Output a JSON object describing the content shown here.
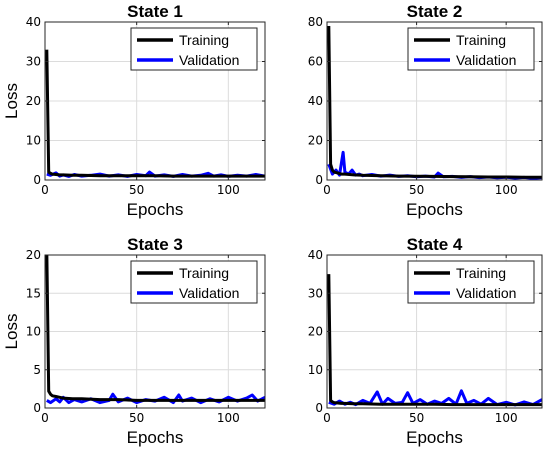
{
  "chart_data": [
    {
      "type": "line",
      "title": "State 1",
      "xlabel": "Epochs",
      "ylabel": "Loss",
      "xlim": [
        0,
        120
      ],
      "ylim": [
        0,
        40
      ],
      "xticks": [
        0,
        50,
        100
      ],
      "yticks": [
        0,
        10,
        20,
        30,
        40
      ],
      "grid": true,
      "legend_position": "top-right",
      "series": [
        {
          "name": "Training",
          "color": "#000000",
          "x": [
            1,
            2,
            3,
            4,
            6,
            8,
            10,
            15,
            20,
            30,
            40,
            50,
            60,
            70,
            80,
            90,
            100,
            110,
            120
          ],
          "y": [
            33,
            2.0,
            1.7,
            1.5,
            1.4,
            1.3,
            1.3,
            1.2,
            1.2,
            1.1,
            1.1,
            1.1,
            1.1,
            1.0,
            1.0,
            1.0,
            1.0,
            1.0,
            1.0
          ]
        },
        {
          "name": "Validation",
          "color": "#0000ff",
          "x": [
            1,
            3,
            6,
            8,
            10,
            13,
            16,
            20,
            25,
            30,
            35,
            40,
            45,
            50,
            55,
            57,
            60,
            65,
            70,
            75,
            80,
            85,
            89,
            92,
            96,
            100,
            105,
            110,
            115,
            120
          ],
          "y": [
            1.5,
            1.2,
            1.8,
            1.0,
            1.3,
            0.9,
            1.4,
            1.0,
            1.2,
            1.5,
            1.0,
            1.3,
            0.9,
            1.4,
            1.1,
            2.0,
            1.0,
            1.3,
            0.9,
            1.4,
            1.0,
            1.2,
            1.7,
            1.0,
            1.3,
            0.9,
            1.2,
            1.0,
            1.4,
            1.0
          ]
        }
      ]
    },
    {
      "type": "line",
      "title": "State 2",
      "xlabel": "Epochs",
      "ylabel": "",
      "xlim": [
        0,
        120
      ],
      "ylim": [
        0,
        80
      ],
      "xticks": [
        0,
        50,
        100
      ],
      "yticks": [
        0,
        20,
        40,
        60,
        80
      ],
      "grid": true,
      "legend_position": "top-right",
      "series": [
        {
          "name": "Training",
          "color": "#000000",
          "x": [
            1,
            2,
            3,
            4,
            6,
            8,
            10,
            15,
            20,
            30,
            40,
            50,
            60,
            70,
            80,
            90,
            100,
            110,
            120
          ],
          "y": [
            78,
            8,
            5,
            4,
            3.5,
            3,
            3,
            2.6,
            2.4,
            2.2,
            2,
            1.9,
            1.8,
            1.7,
            1.6,
            1.5,
            1.5,
            1.4,
            1.4
          ]
        },
        {
          "name": "Validation",
          "color": "#0000ff",
          "x": [
            1,
            3,
            5,
            7,
            9,
            10,
            12,
            14,
            16,
            18,
            20,
            25,
            30,
            35,
            40,
            45,
            50,
            55,
            60,
            62,
            65,
            70,
            75,
            80,
            85,
            90,
            95,
            100,
            105,
            110,
            115,
            120
          ],
          "y": [
            8,
            3,
            5,
            2.5,
            14,
            4,
            3,
            5,
            2.5,
            3,
            2.2,
            2.8,
            2.0,
            2.5,
            1.8,
            2.2,
            1.6,
            2.0,
            1.5,
            3.5,
            1.6,
            1.8,
            1.3,
            1.7,
            1.2,
            1.5,
            1.1,
            1.4,
            1.0,
            1.3,
            0.9,
            1.2
          ]
        }
      ]
    },
    {
      "type": "line",
      "title": "State 3",
      "xlabel": "Epochs",
      "ylabel": "Loss",
      "xlim": [
        0,
        120
      ],
      "ylim": [
        0,
        20
      ],
      "xticks": [
        0,
        50,
        100
      ],
      "yticks": [
        0,
        5,
        10,
        15,
        20
      ],
      "grid": true,
      "legend_position": "top-right",
      "series": [
        {
          "name": "Training",
          "color": "#000000",
          "x": [
            1,
            2,
            3,
            4,
            6,
            8,
            10,
            15,
            20,
            30,
            40,
            50,
            60,
            70,
            80,
            90,
            100,
            110,
            120
          ],
          "y": [
            20.5,
            2.2,
            1.8,
            1.6,
            1.5,
            1.4,
            1.3,
            1.2,
            1.2,
            1.1,
            1.1,
            1.0,
            1.0,
            1.0,
            1.0,
            1.0,
            1.0,
            1.0,
            1.0
          ]
        },
        {
          "name": "Validation",
          "color": "#0000ff",
          "x": [
            1,
            3,
            6,
            8,
            10,
            13,
            16,
            20,
            25,
            30,
            35,
            37,
            40,
            45,
            50,
            55,
            60,
            65,
            70,
            73,
            75,
            80,
            85,
            90,
            95,
            100,
            105,
            110,
            113,
            116,
            120
          ],
          "y": [
            1.0,
            0.7,
            1.2,
            0.8,
            1.4,
            0.7,
            1.1,
            0.8,
            1.2,
            0.7,
            1.0,
            1.8,
            0.8,
            1.3,
            0.7,
            1.1,
            0.9,
            1.4,
            0.7,
            1.7,
            0.9,
            1.3,
            0.7,
            1.2,
            0.8,
            1.4,
            0.9,
            1.3,
            1.7,
            0.9,
            1.4
          ]
        }
      ]
    },
    {
      "type": "line",
      "title": "State 4",
      "xlabel": "Epochs",
      "ylabel": "",
      "xlim": [
        0,
        120
      ],
      "ylim": [
        0,
        40
      ],
      "xticks": [
        0,
        50,
        100
      ],
      "yticks": [
        0,
        10,
        20,
        30,
        40
      ],
      "grid": true,
      "legend_position": "top-right",
      "series": [
        {
          "name": "Training",
          "color": "#000000",
          "x": [
            1,
            2,
            3,
            4,
            6,
            8,
            10,
            15,
            20,
            30,
            40,
            50,
            60,
            70,
            80,
            90,
            100,
            110,
            120
          ],
          "y": [
            35,
            2.0,
            1.6,
            1.4,
            1.3,
            1.2,
            1.2,
            1.1,
            1.1,
            1.0,
            1.0,
            1.0,
            1.0,
            0.9,
            0.9,
            0.9,
            0.9,
            0.9,
            0.9
          ]
        },
        {
          "name": "Validation",
          "color": "#0000ff",
          "x": [
            1,
            4,
            7,
            10,
            13,
            16,
            20,
            24,
            28,
            31,
            34,
            38,
            42,
            45,
            48,
            52,
            56,
            60,
            64,
            68,
            72,
            75,
            78,
            82,
            86,
            90,
            95,
            100,
            105,
            110,
            115,
            120
          ],
          "y": [
            1.5,
            1.0,
            1.8,
            1.0,
            1.5,
            0.9,
            2.0,
            1.2,
            4.2,
            1.0,
            2.5,
            1.2,
            1.5,
            4.0,
            1.2,
            2.2,
            1.0,
            1.8,
            1.2,
            2.5,
            1.0,
            4.5,
            1.2,
            2.0,
            1.0,
            2.5,
            0.9,
            1.5,
            0.8,
            1.6,
            0.9,
            2.2
          ]
        }
      ]
    }
  ]
}
